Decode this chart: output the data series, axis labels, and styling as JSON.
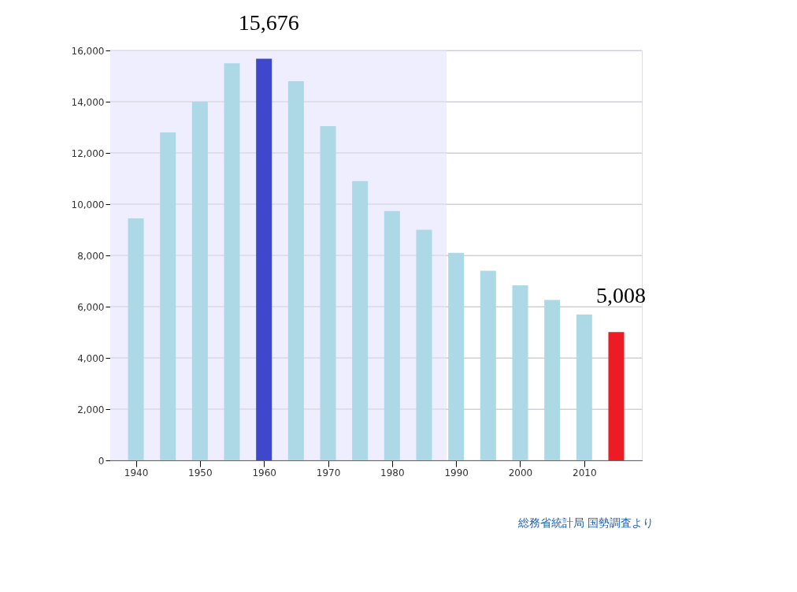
{
  "chart_data": {
    "type": "bar",
    "x": [
      1940,
      1945,
      1950,
      1955,
      1960,
      1965,
      1970,
      1975,
      1980,
      1985,
      1990,
      1995,
      2000,
      2005,
      2010,
      2015
    ],
    "values": [
      9450,
      12800,
      14000,
      15500,
      15676,
      14800,
      13050,
      10900,
      9730,
      9000,
      8100,
      7400,
      6830,
      6260,
      5690,
      5008
    ],
    "colors": [
      "#add8e6",
      "#add8e6",
      "#add8e6",
      "#add8e6",
      "#3f48cc",
      "#add8e6",
      "#add8e6",
      "#add8e6",
      "#add8e6",
      "#add8e6",
      "#add8e6",
      "#add8e6",
      "#add8e6",
      "#add8e6",
      "#add8e6",
      "#ed1c24"
    ],
    "value_labels": [
      null,
      null,
      null,
      null,
      "15,676",
      null,
      null,
      null,
      null,
      null,
      null,
      null,
      null,
      null,
      null,
      "5,008"
    ],
    "xlim": [
      1936,
      2019
    ],
    "xticks": [
      1940,
      1950,
      1960,
      1970,
      1980,
      1990,
      2000,
      2010
    ],
    "ylim": [
      0,
      16000
    ],
    "yticks": [
      0,
      {
        "value": 2000,
        "label": "2,000"
      },
      {
        "value": 4000,
        "label": "4,000"
      },
      {
        "value": 6000,
        "label": "6,000"
      },
      {
        "value": 8000,
        "label": "8,000"
      },
      {
        "value": 10000,
        "label": "10,000"
      },
      {
        "value": 12000,
        "label": "12,000"
      },
      {
        "value": 14000,
        "label": "14,000"
      },
      {
        "value": 16000,
        "label": "16,000"
      }
    ],
    "bands": [
      {
        "axis": "x",
        "from": 1936,
        "to": 1988.5,
        "color": "#eeeeff"
      }
    ],
    "grid": "y",
    "annotations": [
      "総務省統計局 国勢調査より"
    ]
  }
}
